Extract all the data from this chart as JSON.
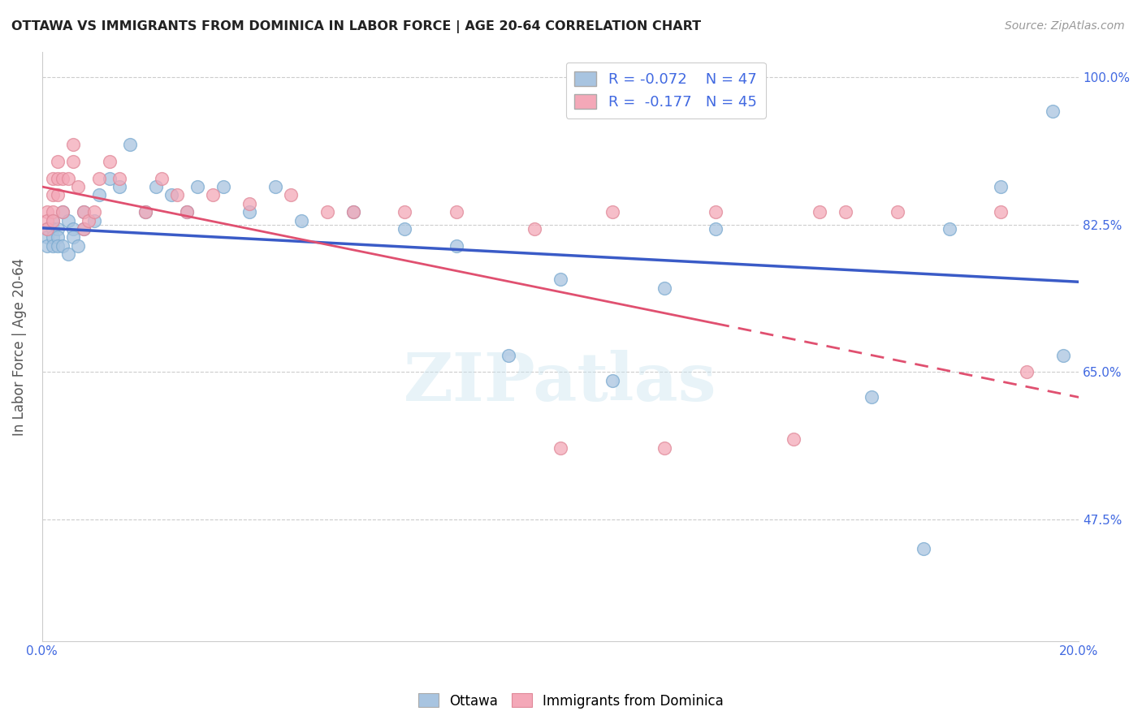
{
  "title": "OTTAWA VS IMMIGRANTS FROM DOMINICA IN LABOR FORCE | AGE 20-64 CORRELATION CHART",
  "source": "Source: ZipAtlas.com",
  "ylabel": "In Labor Force | Age 20-64",
  "xlim": [
    0.0,
    0.2
  ],
  "ylim": [
    0.33,
    1.03
  ],
  "yticks": [
    0.475,
    0.65,
    0.825,
    1.0
  ],
  "ytick_labels": [
    "47.5%",
    "65.0%",
    "82.5%",
    "100.0%"
  ],
  "xticks": [
    0.0,
    0.05,
    0.1,
    0.15,
    0.2
  ],
  "xtick_labels": [
    "0.0%",
    "",
    "",
    "",
    "20.0%"
  ],
  "legend_r1": "R = -0.072",
  "legend_n1": "N = 47",
  "legend_r2": "R =  -0.177",
  "legend_n2": "N = 45",
  "ottawa_color": "#a8c4e0",
  "dominica_color": "#f4a8b8",
  "trend_blue": "#3a5bc7",
  "trend_pink": "#e05070",
  "background_color": "#ffffff",
  "title_color": "#222222",
  "axis_label_color": "#555555",
  "tick_color_right": "#4169e1",
  "grid_color": "#cccccc",
  "watermark": "ZIPatlas",
  "ottawa_x": [
    0.001,
    0.001,
    0.001,
    0.002,
    0.002,
    0.002,
    0.002,
    0.003,
    0.003,
    0.003,
    0.004,
    0.004,
    0.005,
    0.005,
    0.006,
    0.006,
    0.007,
    0.008,
    0.008,
    0.01,
    0.011,
    0.013,
    0.015,
    0.017,
    0.02,
    0.022,
    0.025,
    0.028,
    0.03,
    0.035,
    0.04,
    0.045,
    0.05,
    0.06,
    0.07,
    0.08,
    0.09,
    0.1,
    0.11,
    0.12,
    0.13,
    0.16,
    0.17,
    0.175,
    0.185,
    0.195,
    0.197
  ],
  "ottawa_y": [
    0.82,
    0.81,
    0.8,
    0.83,
    0.82,
    0.81,
    0.8,
    0.82,
    0.81,
    0.8,
    0.84,
    0.8,
    0.83,
    0.79,
    0.82,
    0.81,
    0.8,
    0.84,
    0.82,
    0.83,
    0.86,
    0.88,
    0.87,
    0.92,
    0.84,
    0.87,
    0.86,
    0.84,
    0.87,
    0.87,
    0.84,
    0.87,
    0.83,
    0.84,
    0.82,
    0.8,
    0.67,
    0.76,
    0.64,
    0.75,
    0.82,
    0.62,
    0.44,
    0.82,
    0.87,
    0.96,
    0.67
  ],
  "dominica_x": [
    0.001,
    0.001,
    0.001,
    0.002,
    0.002,
    0.002,
    0.002,
    0.003,
    0.003,
    0.003,
    0.004,
    0.004,
    0.005,
    0.006,
    0.006,
    0.007,
    0.008,
    0.008,
    0.009,
    0.01,
    0.011,
    0.013,
    0.015,
    0.02,
    0.023,
    0.026,
    0.028,
    0.033,
    0.04,
    0.048,
    0.055,
    0.06,
    0.07,
    0.08,
    0.095,
    0.1,
    0.11,
    0.12,
    0.13,
    0.145,
    0.15,
    0.155,
    0.165,
    0.185,
    0.19
  ],
  "dominica_y": [
    0.84,
    0.83,
    0.82,
    0.86,
    0.84,
    0.83,
    0.88,
    0.9,
    0.88,
    0.86,
    0.88,
    0.84,
    0.88,
    0.92,
    0.9,
    0.87,
    0.84,
    0.82,
    0.83,
    0.84,
    0.88,
    0.9,
    0.88,
    0.84,
    0.88,
    0.86,
    0.84,
    0.86,
    0.85,
    0.86,
    0.84,
    0.84,
    0.84,
    0.84,
    0.82,
    0.56,
    0.84,
    0.56,
    0.84,
    0.57,
    0.84,
    0.84,
    0.84,
    0.84,
    0.65
  ]
}
